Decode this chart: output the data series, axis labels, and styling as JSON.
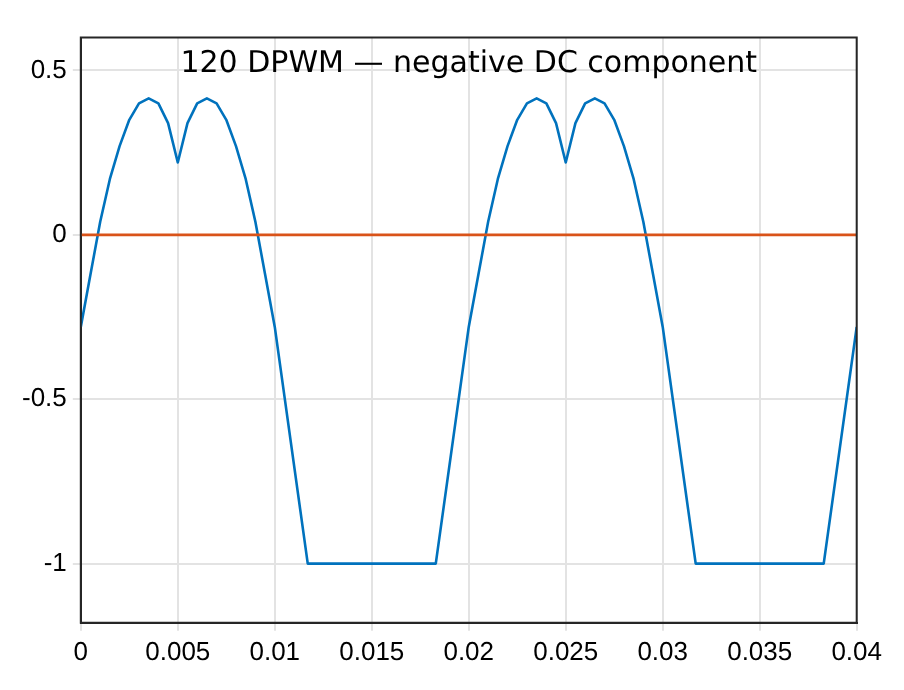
{
  "chart_data": {
    "type": "line",
    "title": "120 DPWM — negative DC component",
    "x": [
      0,
      0.0005,
      0.001,
      0.0015,
      0.002,
      0.0025,
      0.003,
      0.0035,
      0.004,
      0.0045,
      0.005,
      0.0055,
      0.006,
      0.0065,
      0.007,
      0.0075,
      0.008,
      0.0085,
      0.009,
      0.0095,
      0.01,
      0.0117,
      0.0183,
      0.02,
      0.0205,
      0.021,
      0.0215,
      0.022,
      0.0225,
      0.023,
      0.0235,
      0.024,
      0.0245,
      0.025,
      0.0255,
      0.026,
      0.0265,
      0.027,
      0.0275,
      0.028,
      0.0285,
      0.029,
      0.0295,
      0.03,
      0.0317,
      0.0383,
      0.04
    ],
    "series": [
      {
        "color": "#0072bd",
        "values": [
          -0.28,
          -0.12,
          0.04,
          0.17,
          0.27,
          0.35,
          0.4,
          0.415,
          0.4,
          0.34,
          0.22,
          0.34,
          0.4,
          0.415,
          0.4,
          0.35,
          0.27,
          0.17,
          0.04,
          -0.12,
          -0.28,
          -1,
          -1,
          -0.28,
          -0.12,
          0.04,
          0.17,
          0.27,
          0.35,
          0.4,
          0.415,
          0.4,
          0.34,
          0.22,
          0.34,
          0.4,
          0.415,
          0.4,
          0.35,
          0.27,
          0.17,
          0.04,
          -0.12,
          -0.28,
          -1,
          -1,
          -0.28
        ]
      }
    ],
    "ref_lines": [
      {
        "axis": "y",
        "value": 0,
        "color": "#d95319"
      }
    ],
    "xlim": [
      0,
      0.04
    ],
    "xticks": [
      0,
      0.005,
      0.01,
      0.015,
      0.02,
      0.025,
      0.03,
      0.035,
      0.04
    ],
    "ylim": [
      -1.18,
      0.6
    ],
    "yticks": [
      -1,
      -0.5,
      0,
      0.5
    ],
    "grid": true,
    "legend": false,
    "marker": "none",
    "line_style": "solid"
  }
}
